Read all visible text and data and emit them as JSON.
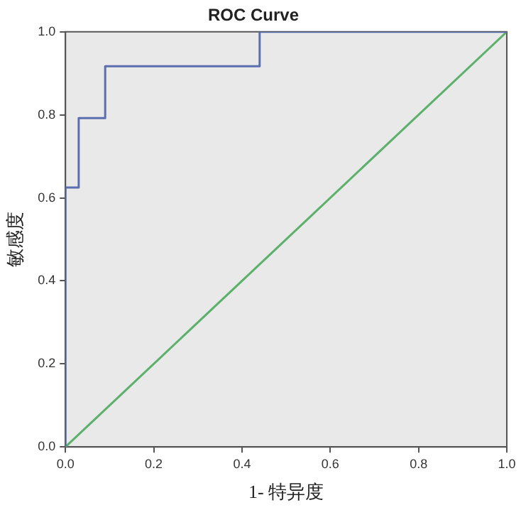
{
  "chart_data": {
    "type": "line",
    "title": "ROC Curve",
    "xlabel": "1- 特异度",
    "ylabel": "敏感度",
    "series": [
      {
        "type": "step",
        "color": "#5b6fae",
        "x": [
          0,
          0,
          0.03,
          0.09,
          0.44,
          1
        ],
        "values": [
          0,
          0.625,
          0.792,
          0.917,
          1,
          1
        ]
      },
      {
        "type": "line",
        "color": "#5bb06a",
        "x": [
          0,
          1
        ],
        "values": [
          0,
          1
        ]
      }
    ],
    "xlim": [
      0,
      1
    ],
    "ylim": [
      0,
      1
    ],
    "xticks": [
      {
        "value": 0,
        "label": "0.0"
      },
      {
        "value": 0.2,
        "label": "0.2"
      },
      {
        "value": 0.4,
        "label": "0.4"
      },
      {
        "value": 0.6,
        "label": "0.6"
      },
      {
        "value": 0.8,
        "label": "0.8"
      },
      {
        "value": 1,
        "label": "1.0"
      }
    ],
    "yticks": [
      {
        "value": 0,
        "label": "0.0"
      },
      {
        "value": 0.2,
        "label": "0.2"
      },
      {
        "value": 0.4,
        "label": "0.4"
      },
      {
        "value": 0.6,
        "label": "0.6"
      },
      {
        "value": 0.8,
        "label": "0.8"
      },
      {
        "value": 1,
        "label": "1.0"
      }
    ],
    "grid": false,
    "legend": false,
    "marker": "none"
  }
}
